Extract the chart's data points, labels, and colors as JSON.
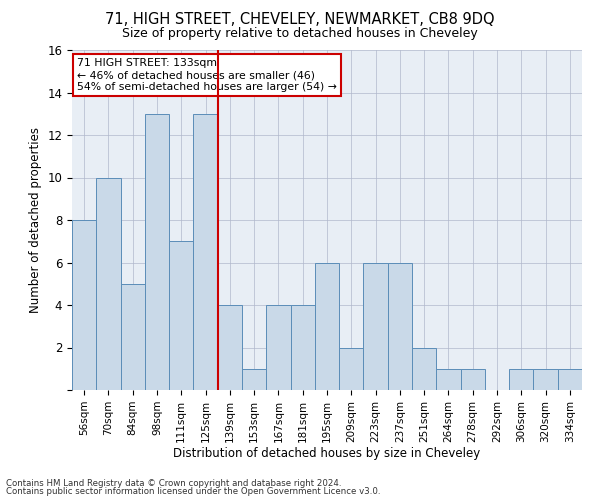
{
  "title1": "71, HIGH STREET, CHEVELEY, NEWMARKET, CB8 9DQ",
  "title2": "Size of property relative to detached houses in Cheveley",
  "xlabel": "Distribution of detached houses by size in Cheveley",
  "ylabel": "Number of detached properties",
  "categories": [
    "56sqm",
    "70sqm",
    "84sqm",
    "98sqm",
    "111sqm",
    "125sqm",
    "139sqm",
    "153sqm",
    "167sqm",
    "181sqm",
    "195sqm",
    "209sqm",
    "223sqm",
    "237sqm",
    "251sqm",
    "264sqm",
    "278sqm",
    "292sqm",
    "306sqm",
    "320sqm",
    "334sqm"
  ],
  "values": [
    8,
    10,
    5,
    13,
    7,
    13,
    4,
    1,
    4,
    4,
    6,
    2,
    6,
    6,
    2,
    1,
    1,
    0,
    1,
    1,
    1
  ],
  "bar_color": "#c9d9e8",
  "bar_edge_color": "#5b8db8",
  "vline_x": 6.0,
  "vline_color": "#cc0000",
  "annotation_text": "71 HIGH STREET: 133sqm\n← 46% of detached houses are smaller (46)\n54% of semi-detached houses are larger (54) →",
  "annotation_box_color": "#ffffff",
  "annotation_box_edge": "#cc0000",
  "ylim": [
    0,
    16
  ],
  "yticks": [
    0,
    2,
    4,
    6,
    8,
    10,
    12,
    14,
    16
  ],
  "footer1": "Contains HM Land Registry data © Crown copyright and database right 2024.",
  "footer2": "Contains public sector information licensed under the Open Government Licence v3.0.",
  "grid_color": "#b0b8cc",
  "background_color": "#e8eef5"
}
